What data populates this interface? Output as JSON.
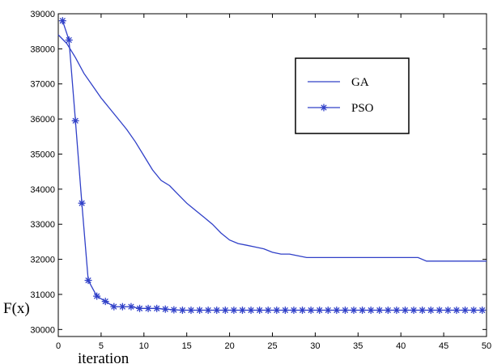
{
  "chart_data": {
    "type": "line",
    "title": "",
    "xlabel": "iteration",
    "ylabel": "F(x)",
    "xlim": [
      0,
      50
    ],
    "ylim": [
      29800,
      39000
    ],
    "x_ticks": [
      "0",
      "5",
      "10",
      "15",
      "20",
      "25",
      "30",
      "35",
      "40",
      "45",
      "50"
    ],
    "y_ticks": [
      "30000",
      "31000",
      "32000",
      "33000",
      "34000",
      "35000",
      "36000",
      "37000",
      "38000",
      "39000"
    ],
    "grid": false,
    "legend_position": "top-right",
    "colors": {
      "line": "#3040c8",
      "axes": "#000000"
    },
    "series": [
      {
        "name": "GA",
        "marker": "none",
        "x": [
          0,
          1,
          2,
          3,
          4,
          5,
          6,
          7,
          8,
          9,
          10,
          11,
          12,
          13,
          14,
          15,
          16,
          17,
          18,
          19,
          20,
          21,
          22,
          23,
          24,
          25,
          26,
          27,
          28,
          29,
          30,
          32,
          34,
          36,
          38,
          40,
          42,
          43,
          44,
          46,
          48,
          50
        ],
        "y": [
          38400,
          38150,
          37750,
          37300,
          36950,
          36600,
          36300,
          36000,
          35700,
          35350,
          34950,
          34550,
          34250,
          34100,
          33850,
          33600,
          33400,
          33200,
          33000,
          32750,
          32550,
          32450,
          32400,
          32350,
          32300,
          32200,
          32150,
          32150,
          32100,
          32050,
          32050,
          32050,
          32050,
          32050,
          32050,
          32050,
          32050,
          31950,
          31950,
          31950,
          31950,
          31950
        ]
      },
      {
        "name": "PSO",
        "marker": "asterisk",
        "x": [
          0.5,
          1.25,
          2,
          2.75,
          3.5,
          4.5,
          5.5,
          6.5,
          7.5,
          8.5,
          9.5,
          10.5,
          11.5,
          12.5,
          13.5,
          14.5,
          15.5,
          16.5,
          17.5,
          18.5,
          19.5,
          20.5,
          21.5,
          22.5,
          23.5,
          24.5,
          25.5,
          26.5,
          27.5,
          28.5,
          29.5,
          30.5,
          31.5,
          32.5,
          33.5,
          34.5,
          35.5,
          36.5,
          37.5,
          38.5,
          39.5,
          40.5,
          41.5,
          42.5,
          43.5,
          44.5,
          45.5,
          46.5,
          47.5,
          48.5,
          49.5
        ],
        "y": [
          38800,
          38250,
          35950,
          33600,
          31400,
          30950,
          30800,
          30650,
          30650,
          30650,
          30600,
          30600,
          30600,
          30580,
          30560,
          30550,
          30550,
          30550,
          30550,
          30550,
          30550,
          30550,
          30550,
          30550,
          30550,
          30550,
          30550,
          30550,
          30550,
          30550,
          30550,
          30550,
          30550,
          30550,
          30550,
          30550,
          30550,
          30550,
          30550,
          30550,
          30550,
          30550,
          30550,
          30550,
          30550,
          30550,
          30550,
          30550,
          30550,
          30550,
          30550
        ]
      }
    ]
  }
}
